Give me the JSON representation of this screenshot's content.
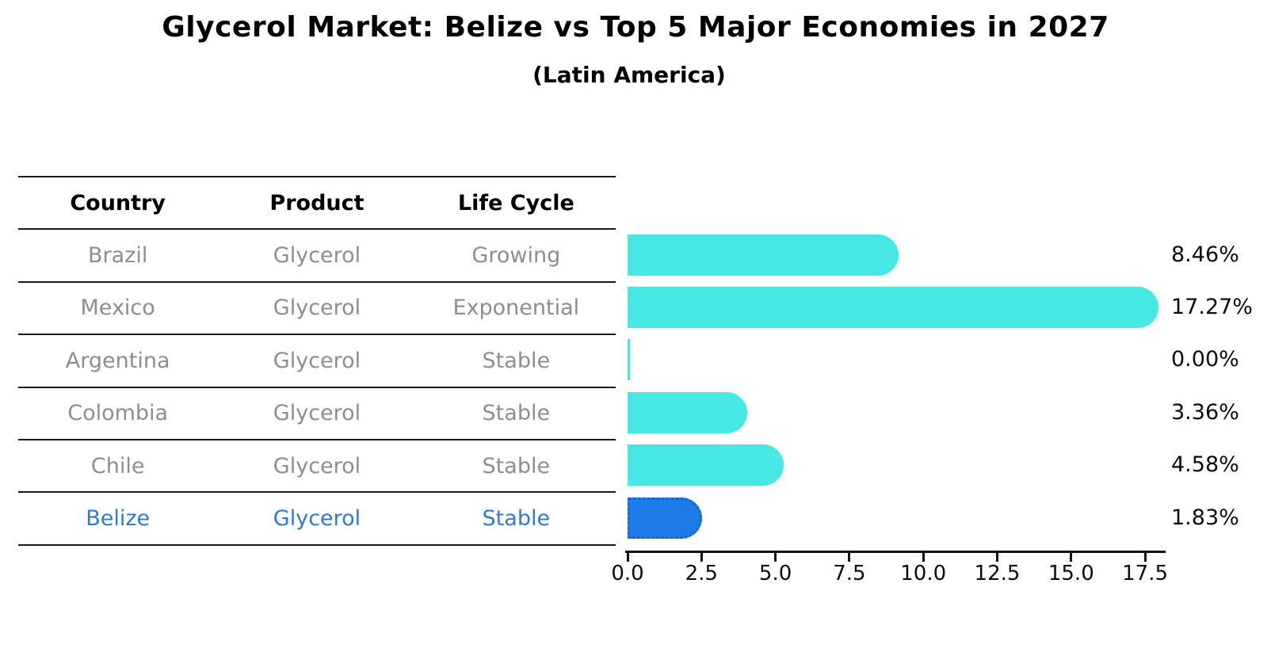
{
  "header": {
    "title": "Glycerol Market: Belize vs Top 5 Major Economies in 2027",
    "subtitle": "(Latin America)"
  },
  "table": {
    "headers": [
      "Country",
      "Product",
      "Life Cycle"
    ],
    "rows": [
      {
        "country": "Brazil",
        "product": "Glycerol",
        "life_cycle": "Growing",
        "highlighted": false
      },
      {
        "country": "Mexico",
        "product": "Glycerol",
        "life_cycle": "Exponential",
        "highlighted": false
      },
      {
        "country": "Argentina",
        "product": "Glycerol",
        "life_cycle": "Stable",
        "highlighted": false
      },
      {
        "country": "Colombia",
        "product": "Glycerol",
        "life_cycle": "Stable",
        "highlighted": false
      },
      {
        "country": "Chile",
        "product": "Glycerol",
        "life_cycle": "Stable",
        "highlighted": false
      },
      {
        "country": "Belize",
        "product": "Glycerol",
        "life_cycle": "Stable",
        "highlighted": true
      }
    ]
  },
  "chart_data": {
    "type": "bar",
    "orientation": "horizontal",
    "title": "Glycerol Market: Belize vs Top 5 Major Economies in 2027",
    "subtitle": "(Latin America)",
    "categories": [
      "Brazil",
      "Mexico",
      "Argentina",
      "Colombia",
      "Chile",
      "Belize"
    ],
    "values": [
      8.46,
      17.27,
      0.0,
      3.36,
      4.58,
      1.83
    ],
    "value_labels": [
      "8.46%",
      "17.27%",
      "0.00%",
      "3.36%",
      "4.58%",
      "1.83%"
    ],
    "xlabel": "",
    "ylabel": "",
    "xlim": [
      0,
      18.2
    ],
    "x_ticks": [
      0.0,
      2.5,
      5.0,
      7.5,
      10.0,
      12.5,
      15.0,
      17.5
    ],
    "x_tick_labels": [
      "0.0",
      "2.5",
      "5.0",
      "7.5",
      "10.0",
      "12.5",
      "15.0",
      "17.5"
    ],
    "grid": false,
    "legend": false,
    "bar_color": "#47e8e3",
    "highlight_bar_color": "#1e7be8",
    "highlight_border_color": "#1a64c8",
    "highlight_text_color": "#2e7bd6",
    "highlight_index": 5,
    "highlight_category": "Belize"
  }
}
